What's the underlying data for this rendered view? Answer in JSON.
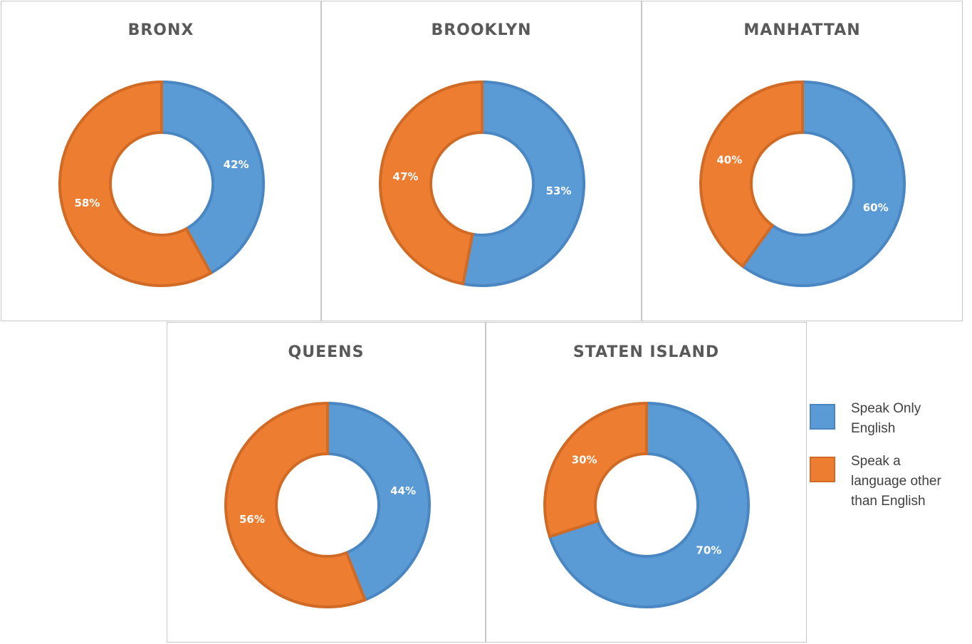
{
  "colors": {
    "english_fill": "#5b9bd5",
    "english_stroke": "#4a86c2",
    "other_fill": "#ed7d31",
    "other_stroke": "#d06a24"
  },
  "legend": [
    {
      "label": "Speak Only English",
      "color_key": "english"
    },
    {
      "label": "Speak a language other than English",
      "color_key": "other"
    }
  ],
  "chart_data": [
    {
      "type": "pie",
      "title": "BRONX",
      "categories": [
        "Speak Only English",
        "Speak a language other than English"
      ],
      "values": [
        42,
        58
      ],
      "labels": [
        "42%",
        "58%"
      ]
    },
    {
      "type": "pie",
      "title": "BROOKLYN",
      "categories": [
        "Speak Only English",
        "Speak a language other than English"
      ],
      "values": [
        53,
        47
      ],
      "labels": [
        "53%",
        "47%"
      ]
    },
    {
      "type": "pie",
      "title": "MANHATTAN",
      "categories": [
        "Speak Only English",
        "Speak a language other than English"
      ],
      "values": [
        60,
        40
      ],
      "labels": [
        "60%",
        "40%"
      ]
    },
    {
      "type": "pie",
      "title": "QUEENS",
      "categories": [
        "Speak Only English",
        "Speak a language other than English"
      ],
      "values": [
        44,
        56
      ],
      "labels": [
        "44%",
        "56%"
      ]
    },
    {
      "type": "pie",
      "title": "STATEN ISLAND",
      "categories": [
        "Speak Only English",
        "Speak a language other than English"
      ],
      "values": [
        70,
        30
      ],
      "labels": [
        "70%",
        "30%"
      ]
    }
  ]
}
